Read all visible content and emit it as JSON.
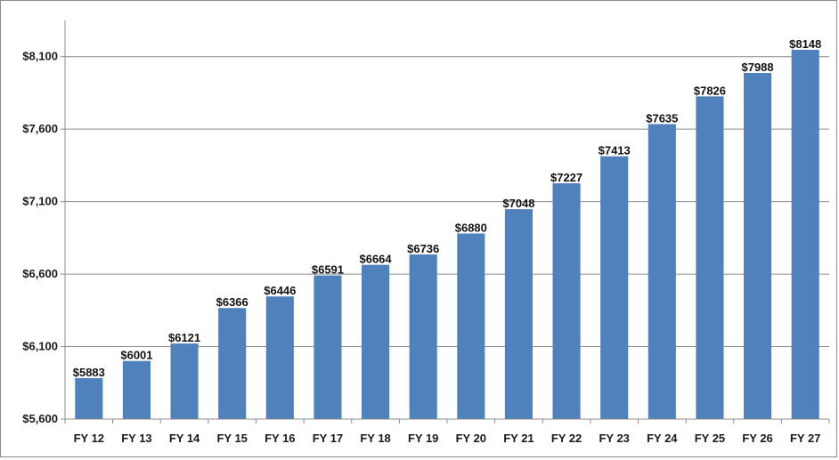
{
  "chart_data": {
    "type": "bar",
    "categories": [
      "FY 12",
      "FY 13",
      "FY 14",
      "FY 15",
      "FY 16",
      "FY 17",
      "FY 18",
      "FY 19",
      "FY 20",
      "FY 21",
      "FY 22",
      "FY 23",
      "FY 24",
      "FY 25",
      "FY 26",
      "FY 27"
    ],
    "values": [
      5883,
      6001,
      6121,
      6366,
      6446,
      6591,
      6664,
      6736,
      6880,
      7048,
      7227,
      7413,
      7635,
      7826,
      7988,
      8148
    ],
    "data_labels": [
      "$5883",
      "$6001",
      "$6121",
      "$6366",
      "$6446",
      "$6591",
      "$6664",
      "$6736",
      "$6880",
      "$7048",
      "$7227",
      "$7413",
      "$7635",
      "$7826",
      "$7988",
      "$8148"
    ],
    "yticks": [
      5600,
      6100,
      6600,
      7100,
      7600,
      8100
    ],
    "ytick_labels": [
      "$5,600",
      "$6,100",
      "$6,600",
      "$7,100",
      "$7,600",
      "$8,100"
    ],
    "ylim": [
      5600,
      8350
    ],
    "grid": true,
    "legend": "none",
    "bar_color": "#4f81bd",
    "grid_color": "#8c8c8c"
  }
}
